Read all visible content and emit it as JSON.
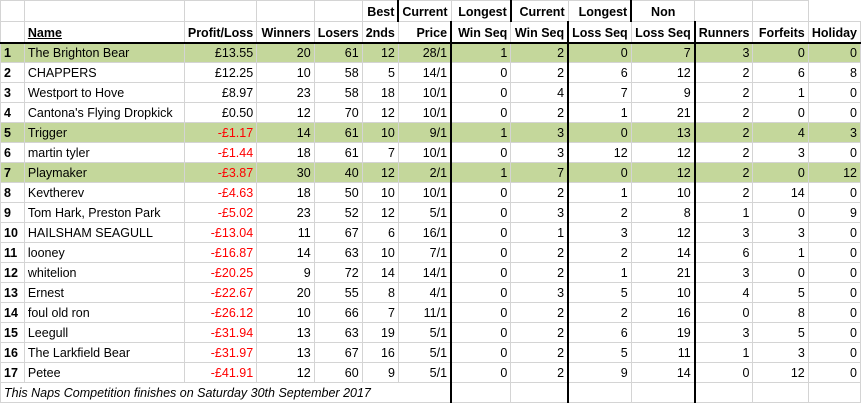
{
  "headers": {
    "name": "Name",
    "profit_loss": "Profit/Loss",
    "winners": "Winners",
    "losers": "Losers",
    "seconds": "2nds",
    "best_price": [
      "Best",
      "Price"
    ],
    "current_win_seq": [
      "Current",
      "Win Seq"
    ],
    "longest_win_seq": [
      "Longest",
      "Win Seq"
    ],
    "current_loss_seq": [
      "Current",
      "Loss Seq"
    ],
    "longest_loss_seq": [
      "Longest",
      "Loss Seq"
    ],
    "non_runners": [
      "Non",
      "Runners"
    ],
    "forfeits": "Forfeits",
    "holiday": "Holiday"
  },
  "rows": [
    {
      "rank": "1",
      "name": "The Brighton Bear",
      "pl": "£13.55",
      "neg": false,
      "hl": true,
      "w": "20",
      "l": "61",
      "s": "12",
      "bp": "28/1",
      "cws": "1",
      "lws": "2",
      "cls": "0",
      "lls": "7",
      "nr": "3",
      "ff": "0",
      "hol": "0"
    },
    {
      "rank": "2",
      "name": "CHAPPERS",
      "pl": "£12.25",
      "neg": false,
      "hl": false,
      "w": "10",
      "l": "58",
      "s": "5",
      "bp": "14/1",
      "cws": "0",
      "lws": "2",
      "cls": "6",
      "lls": "12",
      "nr": "2",
      "ff": "6",
      "hol": "8"
    },
    {
      "rank": "3",
      "name": "Westport to Hove",
      "pl": "£8.97",
      "neg": false,
      "hl": false,
      "w": "23",
      "l": "58",
      "s": "18",
      "bp": "10/1",
      "cws": "0",
      "lws": "4",
      "cls": "7",
      "lls": "9",
      "nr": "2",
      "ff": "1",
      "hol": "0"
    },
    {
      "rank": "4",
      "name": "Cantona's Flying Dropkick",
      "pl": "£0.50",
      "neg": false,
      "hl": false,
      "w": "12",
      "l": "70",
      "s": "12",
      "bp": "10/1",
      "cws": "0",
      "lws": "2",
      "cls": "1",
      "lls": "21",
      "nr": "2",
      "ff": "0",
      "hol": "0"
    },
    {
      "rank": "5",
      "name": "Trigger",
      "pl": "-£1.17",
      "neg": true,
      "hl": true,
      "w": "14",
      "l": "61",
      "s": "10",
      "bp": "9/1",
      "cws": "1",
      "lws": "3",
      "cls": "0",
      "lls": "13",
      "nr": "2",
      "ff": "4",
      "hol": "3"
    },
    {
      "rank": "6",
      "name": "martin tyler",
      "pl": "-£1.44",
      "neg": true,
      "hl": false,
      "w": "18",
      "l": "61",
      "s": "7",
      "bp": "10/1",
      "cws": "0",
      "lws": "3",
      "cls": "12",
      "lls": "12",
      "nr": "2",
      "ff": "3",
      "hol": "0"
    },
    {
      "rank": "7",
      "name": "Playmaker",
      "pl": "-£3.87",
      "neg": true,
      "hl": true,
      "w": "30",
      "l": "40",
      "s": "12",
      "bp": "2/1",
      "cws": "1",
      "lws": "7",
      "cls": "0",
      "lls": "12",
      "nr": "2",
      "ff": "0",
      "hol": "12"
    },
    {
      "rank": "8",
      "name": "Kevtherev",
      "pl": "-£4.63",
      "neg": true,
      "hl": false,
      "w": "18",
      "l": "50",
      "s": "10",
      "bp": "10/1",
      "cws": "0",
      "lws": "2",
      "cls": "1",
      "lls": "10",
      "nr": "2",
      "ff": "14",
      "hol": "0"
    },
    {
      "rank": "9",
      "name": "Tom Hark, Preston Park",
      "pl": "-£5.02",
      "neg": true,
      "hl": false,
      "w": "23",
      "l": "52",
      "s": "12",
      "bp": "5/1",
      "cws": "0",
      "lws": "3",
      "cls": "2",
      "lls": "8",
      "nr": "1",
      "ff": "0",
      "hol": "9"
    },
    {
      "rank": "10",
      "name": "HAILSHAM SEAGULL",
      "pl": "-£13.04",
      "neg": true,
      "hl": false,
      "w": "11",
      "l": "67",
      "s": "6",
      "bp": "16/1",
      "cws": "0",
      "lws": "1",
      "cls": "3",
      "lls": "12",
      "nr": "3",
      "ff": "3",
      "hol": "0"
    },
    {
      "rank": "11",
      "name": "looney",
      "pl": "-£16.87",
      "neg": true,
      "hl": false,
      "w": "14",
      "l": "63",
      "s": "10",
      "bp": "7/1",
      "cws": "0",
      "lws": "2",
      "cls": "2",
      "lls": "14",
      "nr": "6",
      "ff": "1",
      "hol": "0"
    },
    {
      "rank": "12",
      "name": "whitelion",
      "pl": "-£20.25",
      "neg": true,
      "hl": false,
      "w": "9",
      "l": "72",
      "s": "14",
      "bp": "14/1",
      "cws": "0",
      "lws": "2",
      "cls": "1",
      "lls": "21",
      "nr": "3",
      "ff": "0",
      "hol": "0"
    },
    {
      "rank": "13",
      "name": "Ernest",
      "pl": "-£22.67",
      "neg": true,
      "hl": false,
      "w": "20",
      "l": "55",
      "s": "8",
      "bp": "4/1",
      "cws": "0",
      "lws": "3",
      "cls": "5",
      "lls": "10",
      "nr": "4",
      "ff": "5",
      "hol": "0"
    },
    {
      "rank": "14",
      "name": "foul old ron",
      "pl": "-£26.12",
      "neg": true,
      "hl": false,
      "w": "10",
      "l": "66",
      "s": "7",
      "bp": "11/1",
      "cws": "0",
      "lws": "2",
      "cls": "2",
      "lls": "16",
      "nr": "0",
      "ff": "8",
      "hol": "0"
    },
    {
      "rank": "15",
      "name": "Leegull",
      "pl": "-£31.94",
      "neg": true,
      "hl": false,
      "w": "13",
      "l": "63",
      "s": "19",
      "bp": "5/1",
      "cws": "0",
      "lws": "2",
      "cls": "6",
      "lls": "19",
      "nr": "3",
      "ff": "5",
      "hol": "0"
    },
    {
      "rank": "16",
      "name": "The Larkfield Bear",
      "pl": "-£31.97",
      "neg": true,
      "hl": false,
      "w": "13",
      "l": "67",
      "s": "16",
      "bp": "5/1",
      "cws": "0",
      "lws": "2",
      "cls": "5",
      "lls": "11",
      "nr": "1",
      "ff": "3",
      "hol": "0"
    },
    {
      "rank": "17",
      "name": "Petee",
      "pl": "-£41.91",
      "neg": true,
      "hl": false,
      "w": "12",
      "l": "60",
      "s": "9",
      "bp": "5/1",
      "cws": "0",
      "lws": "2",
      "cls": "9",
      "lls": "14",
      "nr": "0",
      "ff": "12",
      "hol": "0"
    }
  ],
  "footer": "This Naps Competition finishes on Saturday 30th September 2017",
  "colors": {
    "highlight": "#c4d79b",
    "negative": "#ff0000",
    "gridline": "#d4d4d4"
  }
}
